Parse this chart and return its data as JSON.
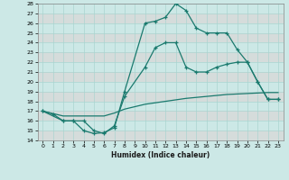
{
  "bg_color": "#cce8e6",
  "grid_color": "#b0d8d5",
  "line_color": "#1a7a6e",
  "xlabel": "Humidex (Indice chaleur)",
  "ylim": [
    14,
    28
  ],
  "xlim": [
    -0.5,
    23.5
  ],
  "yticks": [
    14,
    15,
    16,
    17,
    18,
    19,
    20,
    21,
    22,
    23,
    24,
    25,
    26,
    27,
    28
  ],
  "xticks": [
    0,
    1,
    2,
    3,
    4,
    5,
    6,
    7,
    8,
    9,
    10,
    11,
    12,
    13,
    14,
    15,
    16,
    17,
    18,
    19,
    20,
    21,
    22,
    23
  ],
  "line1_x": [
    0,
    1,
    2,
    3,
    4,
    5,
    6,
    7,
    8,
    10,
    11,
    12,
    13,
    14,
    15,
    16,
    17,
    18,
    19,
    20,
    21,
    22,
    23
  ],
  "line1_y": [
    17,
    16.7,
    16,
    16,
    15,
    14.7,
    14.8,
    15.3,
    19,
    26,
    26.2,
    26.6,
    28,
    27.3,
    25.5,
    25,
    25,
    25,
    23.3,
    22,
    20,
    18.2,
    18.2
  ],
  "line2_x": [
    0,
    2,
    3,
    4,
    5,
    6,
    7,
    8,
    10,
    11,
    12,
    13,
    14,
    15,
    16,
    17,
    18,
    19,
    20,
    21,
    22,
    23
  ],
  "line2_y": [
    17,
    16,
    16,
    16,
    15,
    14.7,
    15.5,
    18.5,
    21.5,
    23.5,
    24,
    24,
    21.5,
    21,
    21,
    21.5,
    21.8,
    22,
    22,
    20,
    18.2,
    18.2
  ],
  "line3_x": [
    0,
    2,
    3,
    4,
    5,
    6,
    7,
    8,
    10,
    12,
    14,
    16,
    18,
    20,
    22,
    23
  ],
  "line3_y": [
    17,
    16.5,
    16.5,
    16.5,
    16.5,
    16.5,
    16.8,
    17.2,
    17.7,
    18.0,
    18.3,
    18.5,
    18.7,
    18.8,
    18.9,
    18.9
  ]
}
